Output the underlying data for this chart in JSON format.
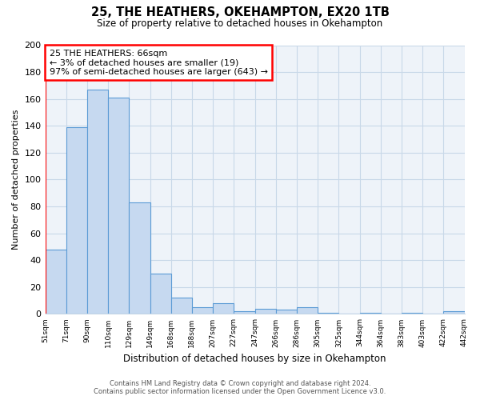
{
  "title": "25, THE HEATHERS, OKEHAMPTON, EX20 1TB",
  "subtitle": "Size of property relative to detached houses in Okehampton",
  "xlabel": "Distribution of detached houses by size in Okehampton",
  "ylabel": "Number of detached properties",
  "bar_labels": [
    "51sqm",
    "71sqm",
    "90sqm",
    "110sqm",
    "129sqm",
    "149sqm",
    "168sqm",
    "188sqm",
    "207sqm",
    "227sqm",
    "247sqm",
    "266sqm",
    "286sqm",
    "305sqm",
    "325sqm",
    "344sqm",
    "364sqm",
    "383sqm",
    "403sqm",
    "422sqm",
    "442sqm"
  ],
  "bar_values": [
    48,
    139,
    167,
    161,
    83,
    30,
    12,
    5,
    8,
    2,
    4,
    3,
    5,
    1,
    0,
    1,
    0,
    1,
    0,
    2
  ],
  "bar_color": "#c6d9f0",
  "bar_edge_color": "#5b9bd5",
  "highlight_color": "#ff0000",
  "ylim": [
    0,
    200
  ],
  "yticks": [
    0,
    20,
    40,
    60,
    80,
    100,
    120,
    140,
    160,
    180,
    200
  ],
  "annotation_title": "25 THE HEATHERS: 66sqm",
  "annotation_line1": "← 3% of detached houses are smaller (19)",
  "annotation_line2": "97% of semi-detached houses are larger (643) →",
  "footnote1": "Contains HM Land Registry data © Crown copyright and database right 2024.",
  "footnote2": "Contains public sector information licensed under the Open Government Licence v3.0.",
  "background_color": "#ffffff",
  "grid_color": "#c8d8e8"
}
